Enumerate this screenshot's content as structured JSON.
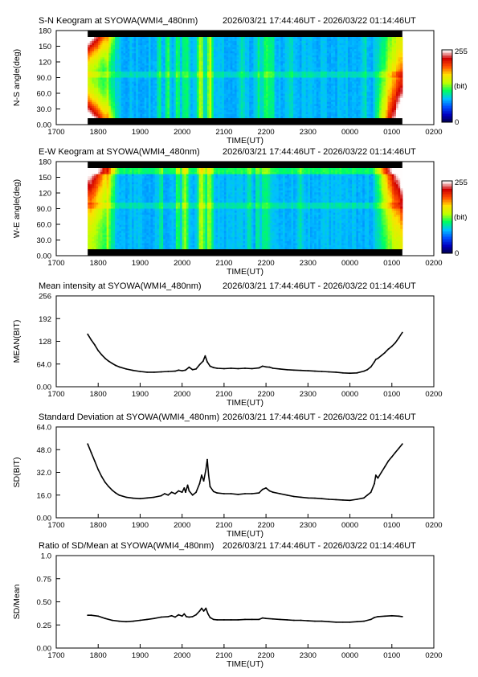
{
  "chart_data": [
    {
      "type": "heatmap",
      "title": "S-N Keogram at SYOWA(WMI4_480nm)",
      "time_range": "2026/03/21 17:44:46UT - 2026/03/22 01:14:46UT",
      "xlabel": "TIME(UT)",
      "ylabel": "N-S angle(deg)",
      "x_ticks": [
        "1700",
        "1800",
        "1900",
        "2000",
        "2100",
        "2200",
        "2300",
        "0000",
        "0100",
        "0200"
      ],
      "y_ticks": [
        "0.00",
        "30.0",
        "60.0",
        "90.0",
        "120",
        "150",
        "180"
      ],
      "ylim": [
        0,
        180
      ],
      "colorbar": {
        "labels": [
          "255",
          "(bit)",
          "0"
        ],
        "range": [
          0,
          255
        ]
      },
      "colormap": [
        "#000040",
        "#0000c0",
        "#0050ff",
        "#00c0ff",
        "#00ff60",
        "#c0ff00",
        "#ffe000",
        "#ff5000",
        "#d00000",
        "#ffffff"
      ],
      "bright_bands": [
        {
          "time": "1814",
          "level": 0.55
        },
        {
          "time": "1927",
          "level": 0.5
        },
        {
          "time": "1940",
          "level": 0.75
        },
        {
          "time": "1954",
          "level": 0.7
        },
        {
          "time": "2003",
          "level": 0.6
        },
        {
          "time": "2008",
          "level": 0.65
        },
        {
          "time": "2024",
          "level": 0.8
        },
        {
          "time": "2028",
          "level": 0.9
        },
        {
          "time": "2038",
          "level": 1.0
        },
        {
          "time": "2042",
          "level": 0.9
        },
        {
          "time": "2125",
          "level": 0.45
        },
        {
          "time": "2149",
          "level": 0.5
        },
        {
          "time": "2158",
          "level": 0.7
        },
        {
          "time": "2203",
          "level": 0.75
        },
        {
          "time": "2209",
          "level": 0.6
        },
        {
          "time": "2237",
          "level": 0.4
        },
        {
          "time": "0022",
          "level": 0.35
        }
      ]
    },
    {
      "type": "heatmap",
      "title": "E-W Keogram at SYOWA(WMI4_480nm)",
      "time_range": "2026/03/21 17:44:46UT - 2026/03/22 01:14:46UT",
      "xlabel": "TIME(UT)",
      "ylabel": "W-E angle(deg)",
      "x_ticks": [
        "1700",
        "1800",
        "1900",
        "2000",
        "2100",
        "2200",
        "2300",
        "0000",
        "0100",
        "0200"
      ],
      "y_ticks": [
        "0.00",
        "30.0",
        "60.0",
        "90.0",
        "120",
        "150",
        "180"
      ],
      "ylim": [
        0,
        180
      ],
      "colorbar": {
        "labels": [
          "255",
          "(bit)",
          "0"
        ],
        "range": [
          0,
          255
        ]
      },
      "colormap": [
        "#000040",
        "#0000c0",
        "#0050ff",
        "#00c0ff",
        "#00ff60",
        "#c0ff00",
        "#ffe000",
        "#ff5000",
        "#d00000",
        "#ffffff"
      ],
      "bright_bands": [
        {
          "time": "1814",
          "level": 0.5
        },
        {
          "time": "1930",
          "level": 0.5
        },
        {
          "time": "1954",
          "level": 0.75
        },
        {
          "time": "2002",
          "level": 0.85
        },
        {
          "time": "2006",
          "level": 0.8
        },
        {
          "time": "2026",
          "level": 0.95
        },
        {
          "time": "2030",
          "level": 1.0
        },
        {
          "time": "2037",
          "level": 0.95
        },
        {
          "time": "2042",
          "level": 0.85
        },
        {
          "time": "2136",
          "level": 0.45
        },
        {
          "time": "2148",
          "level": 0.5
        },
        {
          "time": "2157",
          "level": 0.6
        },
        {
          "time": "2203",
          "level": 0.6
        },
        {
          "time": "2250",
          "level": 0.35
        }
      ]
    },
    {
      "type": "line",
      "title": "Mean intensity at SYOWA(WMI4_480nm)",
      "time_range": "2026/03/21 17:44:46UT - 2026/03/22 01:14:46UT",
      "xlabel": "TIME(UT)",
      "ylabel": "MEAN(BIT)",
      "x_ticks": [
        "1700",
        "1800",
        "1900",
        "2000",
        "2100",
        "2200",
        "2300",
        "0000",
        "0100",
        "0200"
      ],
      "y_ticks": [
        "0.00",
        "64.0",
        "128",
        "192",
        "256"
      ],
      "ylim": [
        0,
        256
      ],
      "series": [
        {
          "points": [
            [
              "1745",
              148
            ],
            [
              "1750",
              132
            ],
            [
              "1755",
              118
            ],
            [
              "1800",
              102
            ],
            [
              "1805",
              90
            ],
            [
              "1810",
              80
            ],
            [
              "1815",
              72
            ],
            [
              "1820",
              66
            ],
            [
              "1825",
              60
            ],
            [
              "1830",
              56
            ],
            [
              "1840",
              50
            ],
            [
              "1850",
              46
            ],
            [
              "1900",
              43
            ],
            [
              "1910",
              41
            ],
            [
              "1920",
              41
            ],
            [
              "1930",
              42
            ],
            [
              "1940",
              43
            ],
            [
              "1950",
              44
            ],
            [
              "1955",
              47
            ],
            [
              "2000",
              45
            ],
            [
              "2005",
              47
            ],
            [
              "2010",
              55
            ],
            [
              "2015",
              48
            ],
            [
              "2020",
              50
            ],
            [
              "2025",
              62
            ],
            [
              "2030",
              72
            ],
            [
              "2033",
              87
            ],
            [
              "2036",
              70
            ],
            [
              "2040",
              58
            ],
            [
              "2045",
              54
            ],
            [
              "2050",
              52
            ],
            [
              "2100",
              51
            ],
            [
              "2110",
              52
            ],
            [
              "2120",
              51
            ],
            [
              "2130",
              52
            ],
            [
              "2140",
              51
            ],
            [
              "2150",
              53
            ],
            [
              "2155",
              58
            ],
            [
              "2200",
              56
            ],
            [
              "2205",
              55
            ],
            [
              "2210",
              52
            ],
            [
              "2220",
              50
            ],
            [
              "2230",
              48
            ],
            [
              "2240",
              47
            ],
            [
              "2250",
              46
            ],
            [
              "2300",
              45
            ],
            [
              "2310",
              44
            ],
            [
              "2320",
              43
            ],
            [
              "2330",
              42
            ],
            [
              "2340",
              41
            ],
            [
              "2350",
              39
            ],
            [
              "0000",
              38
            ],
            [
              "0010",
              39
            ],
            [
              "0020",
              44
            ],
            [
              "0025",
              48
            ],
            [
              "0030",
              56
            ],
            [
              "0035",
              70
            ],
            [
              "0037",
              77
            ],
            [
              "0040",
              80
            ],
            [
              "0045",
              88
            ],
            [
              "0050",
              96
            ],
            [
              "0055",
              106
            ],
            [
              "0100",
              114
            ],
            [
              "0105",
              124
            ],
            [
              "0110",
              138
            ],
            [
              "0115",
              153
            ]
          ]
        }
      ]
    },
    {
      "type": "line",
      "title": "Standard Deviation at SYOWA(WMI4_480nm)",
      "time_range": "2026/03/21 17:44:46UT - 2026/03/22 01:14:46UT",
      "xlabel": "TIME(UT)",
      "ylabel": "SD(BIT)",
      "x_ticks": [
        "1700",
        "1800",
        "1900",
        "2000",
        "2100",
        "2200",
        "2300",
        "0000",
        "0100",
        "0200"
      ],
      "y_ticks": [
        "0.00",
        "16.0",
        "32.0",
        "48.0",
        "64.0"
      ],
      "ylim": [
        0,
        64
      ],
      "series": [
        {
          "points": [
            [
              "1745",
              52
            ],
            [
              "1750",
              46
            ],
            [
              "1755",
              40
            ],
            [
              "1800",
              34
            ],
            [
              "1805",
              29
            ],
            [
              "1810",
              25
            ],
            [
              "1815",
              22
            ],
            [
              "1820",
              19.5
            ],
            [
              "1825",
              17.5
            ],
            [
              "1830",
              16
            ],
            [
              "1840",
              14.5
            ],
            [
              "1850",
              13.8
            ],
            [
              "1900",
              13.5
            ],
            [
              "1910",
              14
            ],
            [
              "1920",
              14.5
            ],
            [
              "1930",
              15.5
            ],
            [
              "1935",
              17
            ],
            [
              "1940",
              16
            ],
            [
              "1945",
              18
            ],
            [
              "1950",
              17
            ],
            [
              "1955",
              19
            ],
            [
              "2000",
              18
            ],
            [
              "2003",
              21
            ],
            [
              "2005",
              18
            ],
            [
              "2008",
              23
            ],
            [
              "2010",
              19
            ],
            [
              "2015",
              16
            ],
            [
              "2020",
              18
            ],
            [
              "2025",
              24
            ],
            [
              "2028",
              30
            ],
            [
              "2031",
              26
            ],
            [
              "2034",
              34
            ],
            [
              "2036",
              41
            ],
            [
              "2038",
              30
            ],
            [
              "2040",
              22
            ],
            [
              "2045",
              18.5
            ],
            [
              "2050",
              17.5
            ],
            [
              "2100",
              17
            ],
            [
              "2110",
              17
            ],
            [
              "2120",
              16.5
            ],
            [
              "2130",
              17
            ],
            [
              "2140",
              17
            ],
            [
              "2150",
              17.5
            ],
            [
              "2155",
              20
            ],
            [
              "2200",
              21
            ],
            [
              "2205",
              19
            ],
            [
              "2210",
              18
            ],
            [
              "2220",
              17
            ],
            [
              "2230",
              16
            ],
            [
              "2240",
              15
            ],
            [
              "2250",
              14.5
            ],
            [
              "2300",
              14
            ],
            [
              "2310",
              13.8
            ],
            [
              "2320",
              13.5
            ],
            [
              "2330",
              13
            ],
            [
              "2340",
              12.8
            ],
            [
              "2350",
              12.5
            ],
            [
              "0000",
              12.3
            ],
            [
              "0010",
              13
            ],
            [
              "0020",
              14
            ],
            [
              "0025",
              16
            ],
            [
              "0030",
              18
            ],
            [
              "0035",
              24
            ],
            [
              "0037",
              30
            ],
            [
              "0040",
              28
            ],
            [
              "0045",
              32
            ],
            [
              "0050",
              36
            ],
            [
              "0055",
              40
            ],
            [
              "0100",
              43
            ],
            [
              "0105",
              46
            ],
            [
              "0110",
              49
            ],
            [
              "0115",
              52
            ]
          ]
        }
      ]
    },
    {
      "type": "line",
      "title": "Ratio of SD/Mean at SYOWA(WMI4_480nm)",
      "time_range": "2026/03/21 17:44:46UT - 2026/03/22 01:14:46UT",
      "xlabel": "TIME(UT)",
      "ylabel": "SD/Mean",
      "x_ticks": [
        "1700",
        "1800",
        "1900",
        "2000",
        "2100",
        "2200",
        "2300",
        "0000",
        "0100",
        "0200"
      ],
      "y_ticks": [
        "0.00",
        "0.25",
        "0.50",
        "0.75",
        "1.0"
      ],
      "ylim": [
        0,
        1
      ],
      "series": [
        {
          "points": [
            [
              "1745",
              0.355
            ],
            [
              "1750",
              0.355
            ],
            [
              "1800",
              0.345
            ],
            [
              "1810",
              0.32
            ],
            [
              "1820",
              0.3
            ],
            [
              "1830",
              0.29
            ],
            [
              "1840",
              0.285
            ],
            [
              "1850",
              0.29
            ],
            [
              "1900",
              0.3
            ],
            [
              "1910",
              0.31
            ],
            [
              "1920",
              0.32
            ],
            [
              "1930",
              0.335
            ],
            [
              "1940",
              0.34
            ],
            [
              "1945",
              0.35
            ],
            [
              "1950",
              0.335
            ],
            [
              "1955",
              0.36
            ],
            [
              "2000",
              0.345
            ],
            [
              "2003",
              0.37
            ],
            [
              "2006",
              0.34
            ],
            [
              "2010",
              0.335
            ],
            [
              "2015",
              0.34
            ],
            [
              "2020",
              0.36
            ],
            [
              "2025",
              0.4
            ],
            [
              "2028",
              0.43
            ],
            [
              "2031",
              0.4
            ],
            [
              "2034",
              0.43
            ],
            [
              "2037",
              0.37
            ],
            [
              "2040",
              0.33
            ],
            [
              "2045",
              0.31
            ],
            [
              "2050",
              0.305
            ],
            [
              "2100",
              0.305
            ],
            [
              "2110",
              0.305
            ],
            [
              "2120",
              0.305
            ],
            [
              "2130",
              0.31
            ],
            [
              "2140",
              0.31
            ],
            [
              "2150",
              0.31
            ],
            [
              "2155",
              0.325
            ],
            [
              "2200",
              0.32
            ],
            [
              "2210",
              0.315
            ],
            [
              "2220",
              0.31
            ],
            [
              "2230",
              0.305
            ],
            [
              "2240",
              0.3
            ],
            [
              "2250",
              0.3
            ],
            [
              "2300",
              0.295
            ],
            [
              "2310",
              0.29
            ],
            [
              "2320",
              0.29
            ],
            [
              "2330",
              0.285
            ],
            [
              "2340",
              0.28
            ],
            [
              "2350",
              0.28
            ],
            [
              "0000",
              0.28
            ],
            [
              "0010",
              0.285
            ],
            [
              "0020",
              0.29
            ],
            [
              "0030",
              0.31
            ],
            [
              "0035",
              0.33
            ],
            [
              "0040",
              0.34
            ],
            [
              "0050",
              0.345
            ],
            [
              "0100",
              0.35
            ],
            [
              "0110",
              0.345
            ],
            [
              "0115",
              0.34
            ]
          ]
        }
      ]
    }
  ]
}
